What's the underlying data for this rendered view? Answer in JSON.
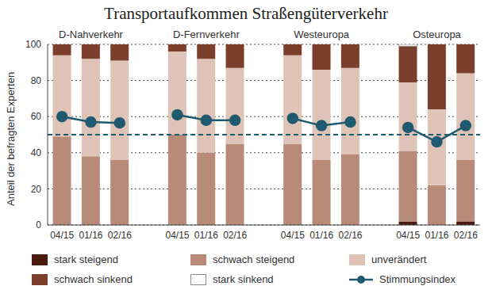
{
  "chart_data": {
    "type": "bar",
    "title": "Transportaufkommen Straßengüterverkehr",
    "ylabel": "Anteil der befragten Experten",
    "stacked": true,
    "grid": true,
    "legend": "bottom",
    "groups": [
      "D-Nahverkehr",
      "D-Fernverkehr",
      "Westeuropa",
      "Osteuropa"
    ],
    "categories": [
      "04/15",
      "01/16",
      "02/16",
      "04/15",
      "01/16",
      "02/16",
      "04/15",
      "01/16",
      "02/16",
      "04/15",
      "01/16",
      "02/16"
    ],
    "ylim": [
      0,
      100
    ],
    "yticks": [
      0,
      20,
      40,
      60,
      80,
      100
    ],
    "series": [
      {
        "name": "stark steigend",
        "color": "#4a1c10",
        "values": [
          0,
          0,
          0,
          0,
          0,
          0,
          0,
          0,
          0,
          2,
          0,
          2
        ]
      },
      {
        "name": "schwach steigend",
        "color": "#b88b79",
        "values": [
          49,
          38,
          36,
          50,
          40,
          45,
          45,
          36,
          39,
          39,
          22,
          34
        ]
      },
      {
        "name": "unverändert",
        "color": "#dfc3b6",
        "values": [
          45,
          54,
          55,
          46,
          52,
          42,
          49,
          50,
          48,
          38,
          42,
          48
        ]
      },
      {
        "name": "schwach sinkend",
        "color": "#7b3f2b",
        "values": [
          6,
          8,
          9,
          4,
          8,
          13,
          6,
          14,
          13,
          20,
          36,
          16
        ]
      },
      {
        "name": "stark sinkend",
        "color": "#ffffff",
        "values": [
          0,
          0,
          0,
          0,
          0,
          0,
          0,
          0,
          0,
          1,
          0,
          0
        ]
      },
      {
        "name": "Stimmungsindex",
        "type": "line",
        "color": "#1f5a70",
        "marker": "circle",
        "values": [
          60,
          57,
          56.5,
          61,
          58,
          58,
          59,
          55,
          57,
          54,
          46,
          55
        ]
      }
    ],
    "reference_line": {
      "value": 50,
      "line_style": "dashed",
      "color": "#1f5a70"
    }
  }
}
